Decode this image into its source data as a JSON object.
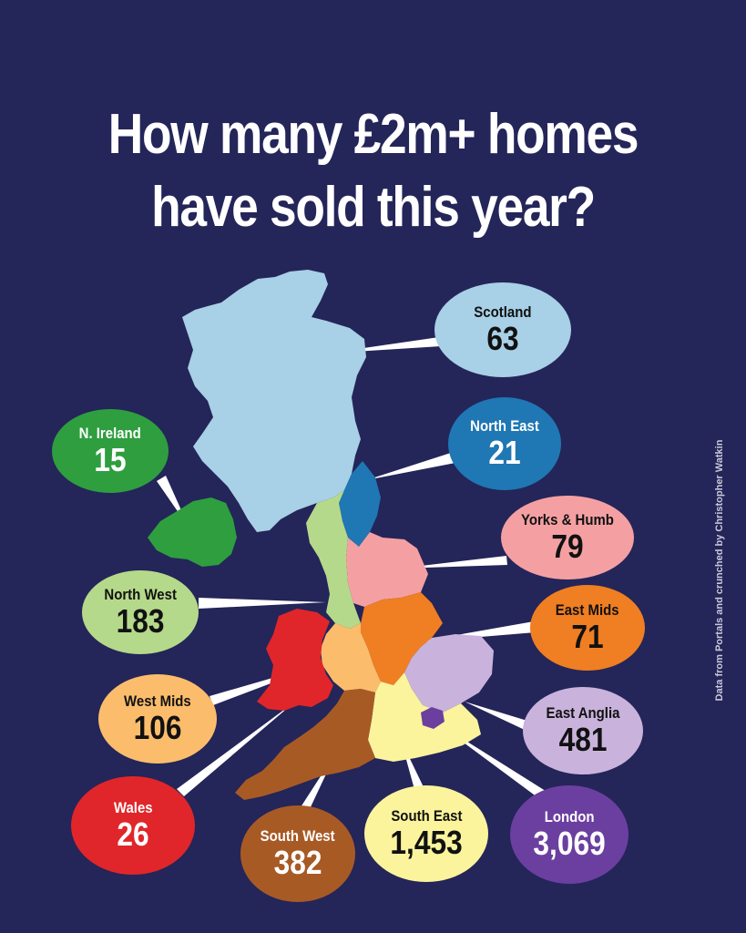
{
  "title": {
    "line1": "How many £2m+ homes",
    "line2": "have sold this year?"
  },
  "credit": "Data from Portals and crunched by Christopher Watkin",
  "colors": {
    "background": "#242559",
    "scotland": "#a8d0e6",
    "north_east": "#1f77b4",
    "yorks_humb": "#f4a0a3",
    "east_mids": "#f07e22",
    "east_anglia": "#c9b3dc",
    "london": "#6b3fa0",
    "south_east": "#fbf49c",
    "south_west": "#a85a25",
    "wales": "#e0262a",
    "west_mids": "#fbbd6c",
    "north_west": "#b5d98a",
    "n_ireland": "#2e9e3f"
  },
  "regions": {
    "scotland": {
      "label": "Scotland",
      "value": "63"
    },
    "north_east": {
      "label": "North East",
      "value": "21"
    },
    "n_ireland": {
      "label": "N. Ireland",
      "value": "15"
    },
    "yorks_humb": {
      "label": "Yorks & Humb",
      "value": "79"
    },
    "north_west": {
      "label": "North West",
      "value": "183"
    },
    "east_mids": {
      "label": "East Mids",
      "value": "71"
    },
    "west_mids": {
      "label": "West Mids",
      "value": "106"
    },
    "east_anglia": {
      "label": "East Anglia",
      "value": "481"
    },
    "wales": {
      "label": "Wales",
      "value": "26"
    },
    "south_west": {
      "label": "South West",
      "value": "382"
    },
    "south_east": {
      "label": "South East",
      "value": "1,453"
    },
    "london": {
      "label": "London",
      "value": "3,069"
    }
  }
}
